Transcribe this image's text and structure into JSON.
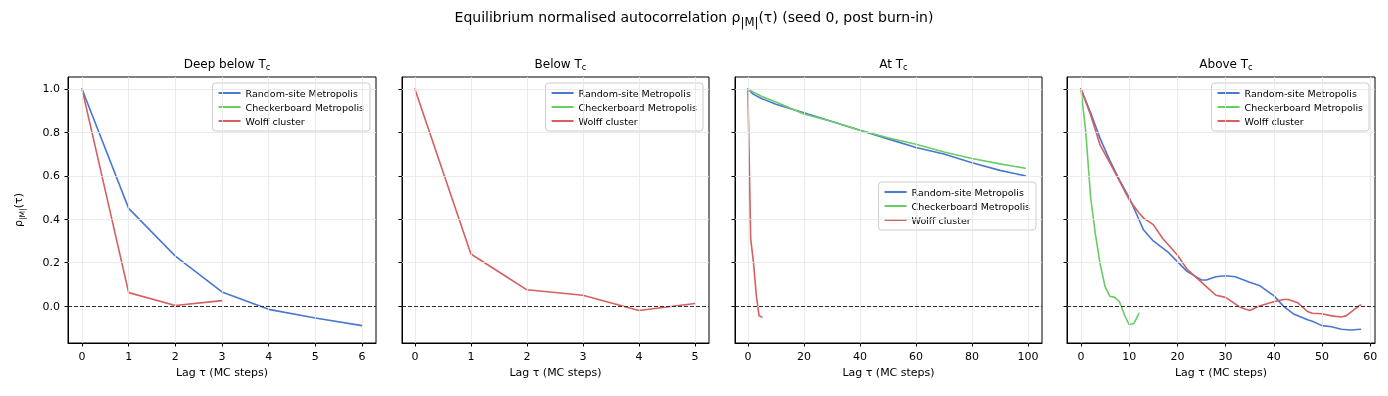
{
  "chart_data": [
    {
      "type": "line",
      "title": "Deep below T$_{c}$",
      "annotations": [
        "Equilibrium normalised autocorrelation ρ$_{|M|}$(τ)  (seed 0, post burn-in)"
      ],
      "xlabel": "Lag τ (MC steps)",
      "ylabel": "ρ$_{|M|}$(τ)",
      "xlim": [
        -0.3,
        6.3
      ],
      "xticks": [
        0,
        1,
        2,
        3,
        4,
        5,
        6
      ],
      "ylim": [
        -0.17,
        1.055
      ],
      "yticks": [
        {
          "value": 0,
          "label": "0.0"
        },
        {
          "value": 0.2,
          "label": "0.2"
        },
        {
          "value": 0.4,
          "label": "0.4"
        },
        {
          "value": 0.6,
          "label": "0.6"
        },
        {
          "value": 0.8,
          "label": "0.8"
        },
        {
          "value": 1,
          "label": "1.0"
        }
      ],
      "grid": true,
      "legend": "top right",
      "ref_lines": [
        {
          "axis": "y",
          "value": 0,
          "color": "#000000",
          "line_style": "dashed"
        }
      ],
      "series": [
        {
          "name": "Random-site Metropolis",
          "color": "#4878d0",
          "x": [
            0,
            1,
            2,
            3,
            4,
            5,
            6
          ],
          "values": [
            1,
            0.45,
            0.23,
            0.065,
            -0.015,
            -0.055,
            -0.09
          ]
        },
        {
          "name": "Checkerboard Metropolis",
          "color": "#6acc64"
        },
        {
          "name": "Wolff cluster",
          "color": "#d65f5f",
          "x": [
            0,
            1,
            2,
            3
          ],
          "values": [
            1,
            0.062,
            0.003,
            0.025
          ]
        }
      ]
    },
    {
      "type": "line",
      "title": "Below T$_{c}$",
      "xlabel": "Lag τ (MC steps)",
      "xlim": [
        -0.23,
        5.25
      ],
      "xticks": [
        0,
        1,
        2,
        3,
        4,
        5
      ],
      "ylim": [
        -0.17,
        1.055
      ],
      "yticks": [
        0,
        0.2,
        0.4,
        0.6,
        0.8,
        1
      ],
      "tick_labels": "x",
      "grid": true,
      "legend": "top right",
      "ref_lines": [
        {
          "axis": "y",
          "value": 0,
          "color": "#000000",
          "line_style": "dashed"
        }
      ],
      "series": [
        {
          "name": "Random-site Metropolis",
          "color": "#4878d0"
        },
        {
          "name": "Checkerboard Metropolis",
          "color": "#6acc64"
        },
        {
          "name": "Wolff cluster",
          "color": "#d65f5f",
          "x": [
            0,
            1,
            2,
            3,
            4,
            5
          ],
          "values": [
            1,
            0.24,
            0.075,
            0.05,
            -0.02,
            0.012
          ]
        }
      ]
    },
    {
      "type": "line",
      "title": "At T$_{c}$",
      "xlabel": "Lag τ (MC steps)",
      "xlim": [
        -4.6,
        105
      ],
      "xticks": [
        0,
        20,
        40,
        60,
        80,
        100
      ],
      "ylim": [
        -0.17,
        1.055
      ],
      "yticks": [
        0,
        0.2,
        0.4,
        0.6,
        0.8,
        1
      ],
      "tick_labels": "x",
      "grid": true,
      "legend": "right",
      "ref_lines": [
        {
          "axis": "y",
          "value": 0,
          "color": "#000000",
          "line_style": "dashed"
        }
      ],
      "series": [
        {
          "name": "Random-site Metropolis",
          "color": "#4878d0",
          "x": [
            0,
            2,
            5,
            10,
            20,
            30,
            40,
            50,
            60,
            70,
            80,
            90,
            99
          ],
          "values": [
            1,
            0.975,
            0.955,
            0.93,
            0.89,
            0.85,
            0.81,
            0.77,
            0.73,
            0.7,
            0.66,
            0.625,
            0.6
          ]
        },
        {
          "name": "Checkerboard Metropolis",
          "color": "#6acc64",
          "x": [
            0,
            2,
            5,
            10,
            20,
            30,
            40,
            50,
            60,
            70,
            80,
            90,
            99
          ],
          "values": [
            1,
            0.985,
            0.965,
            0.94,
            0.885,
            0.85,
            0.81,
            0.775,
            0.745,
            0.71,
            0.68,
            0.655,
            0.635
          ]
        },
        {
          "name": "Wolff cluster",
          "color": "#d65f5f",
          "x": [
            0,
            1,
            2,
            3,
            4,
            5
          ],
          "values": [
            1,
            0.31,
            0.2,
            0.05,
            -0.045,
            -0.05
          ]
        }
      ]
    },
    {
      "type": "line",
      "title": "Above T$_{c}$",
      "xlabel": "Lag τ (MC steps)",
      "xlim": [
        -2.9,
        61
      ],
      "xticks": [
        0,
        10,
        20,
        30,
        40,
        50,
        60
      ],
      "ylim": [
        -0.17,
        1.055
      ],
      "yticks": [
        0,
        0.2,
        0.4,
        0.6,
        0.8,
        1
      ],
      "tick_labels": "x",
      "grid": true,
      "legend": "top right",
      "ref_lines": [
        {
          "axis": "y",
          "value": 0,
          "color": "#000000",
          "line_style": "dashed"
        }
      ],
      "series": [
        {
          "name": "Random-site Metropolis",
          "color": "#4878d0",
          "x": [
            0,
            2,
            4,
            6,
            8,
            10,
            12,
            13,
            15,
            18,
            20,
            22,
            25,
            26,
            28,
            30,
            32,
            35,
            37,
            40,
            42,
            44,
            47,
            48,
            50,
            52,
            54,
            56,
            58
          ],
          "values": [
            1,
            0.89,
            0.77,
            0.67,
            0.58,
            0.5,
            0.4,
            0.35,
            0.3,
            0.25,
            0.205,
            0.16,
            0.12,
            0.12,
            0.135,
            0.14,
            0.135,
            0.11,
            0.095,
            0.048,
            0,
            -0.035,
            -0.063,
            -0.07,
            -0.09,
            -0.095,
            -0.107,
            -0.11,
            -0.107
          ]
        },
        {
          "name": "Checkerboard Metropolis",
          "color": "#6acc64",
          "x": [
            0,
            1,
            2,
            3,
            4,
            5,
            6,
            7,
            8,
            9,
            10,
            11,
            12
          ],
          "values": [
            1,
            0.8,
            0.5,
            0.33,
            0.19,
            0.09,
            0.045,
            0.04,
            0.02,
            -0.04,
            -0.085,
            -0.08,
            -0.035
          ]
        },
        {
          "name": "Wolff cluster",
          "color": "#d65f5f",
          "x": [
            0,
            2,
            4,
            6,
            8,
            10,
            12,
            13,
            15,
            17,
            20,
            22,
            24,
            26,
            28,
            30,
            32,
            33,
            35,
            37,
            40,
            42,
            43,
            45,
            47,
            48,
            50,
            52,
            54,
            55,
            57,
            58
          ],
          "values": [
            1,
            0.88,
            0.74,
            0.66,
            0.575,
            0.49,
            0.43,
            0.405,
            0.375,
            0.31,
            0.235,
            0.17,
            0.13,
            0.09,
            0.05,
            0.04,
            0.01,
            -0.005,
            -0.02,
            0,
            0.02,
            0.03,
            0.03,
            0.015,
            -0.025,
            -0.033,
            -0.035,
            -0.045,
            -0.05,
            -0.045,
            -0.01,
            0.005
          ]
        }
      ]
    }
  ]
}
